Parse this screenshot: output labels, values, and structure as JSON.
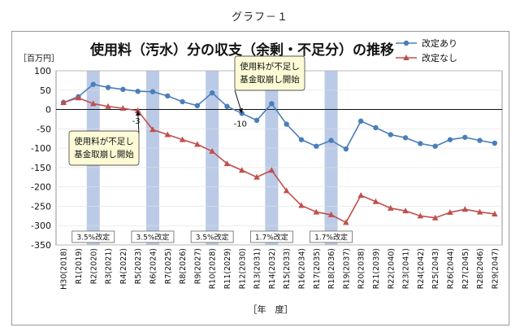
{
  "figure_caption": "グラフ－１",
  "chart_data": {
    "type": "line",
    "title": "使用料（汚水）分の収支（余剰・不足分）の推移",
    "ylabel": "［百万円］",
    "xlabel": "［年　度］",
    "ylim": [
      -350,
      100
    ],
    "yticks": [
      100,
      50,
      0,
      -50,
      -100,
      -150,
      -200,
      -250,
      -300,
      -350
    ],
    "categories": [
      "H30(2018)",
      "R1(2019)",
      "R2(2020)",
      "R3(2021)",
      "R4(2022)",
      "R5(2023)",
      "R6(2024)",
      "R7(2025)",
      "R8(2026)",
      "R9(2027)",
      "R10(2028)",
      "R11(2029)",
      "R12(2030)",
      "R13(2031)",
      "R14(2032)",
      "R15(2033)",
      "R16(2034)",
      "R17(2035)",
      "R18(2036)",
      "R19(2037)",
      "R20(2038)",
      "R21(2039)",
      "R22(2040)",
      "R23(2041)",
      "R24(2042)",
      "R25(2043)",
      "R26(2044)",
      "R27(2045)",
      "R28(2046)",
      "R29(2047)"
    ],
    "series": [
      {
        "name": "改定あり",
        "color": "#4a7ebb",
        "marker": "circle",
        "values": [
          18,
          33,
          65,
          57,
          52,
          47,
          46,
          35,
          20,
          10,
          43,
          8,
          -10,
          -28,
          15,
          -38,
          -78,
          -95,
          -80,
          -102,
          -30,
          -47,
          -65,
          -73,
          -88,
          -95,
          -78,
          -72,
          -80,
          -87
        ]
      },
      {
        "name": "改定なし",
        "color": "#c0504d",
        "marker": "triangle",
        "values": [
          18,
          30,
          15,
          8,
          3,
          -3,
          -52,
          -65,
          -78,
          -90,
          -108,
          -140,
          -157,
          -175,
          -157,
          -210,
          -248,
          -265,
          -272,
          -292,
          -222,
          -238,
          -255,
          -262,
          -275,
          -280,
          -266,
          -258,
          -265,
          -270
        ]
      }
    ],
    "shaded_bands": [
      {
        "index": 2,
        "label": "3.5%改定"
      },
      {
        "index": 6,
        "label": "3.5%改定"
      },
      {
        "index": 10,
        "label": "3.5%改定"
      },
      {
        "index": 14,
        "label": "1.7%改定"
      },
      {
        "index": 18,
        "label": "1.7%改定"
      }
    ],
    "data_labels": [
      {
        "series": "改定なし",
        "index": 5,
        "text": "-3"
      },
      {
        "series": "改定あり",
        "index": 12,
        "text": "-10"
      }
    ],
    "callouts": [
      {
        "index": 5,
        "series": "改定なし",
        "lines": [
          "使用料が不足し",
          "基金取崩し開始"
        ]
      },
      {
        "index": 12,
        "series": "改定あり",
        "lines": [
          "使用料が不足し",
          "基金取崩し開始"
        ]
      }
    ],
    "legend_position": "top-right"
  },
  "colors": {
    "band": "#a4b8de",
    "callout_fill": "#fdfbd6",
    "callout_border": "#555555"
  }
}
